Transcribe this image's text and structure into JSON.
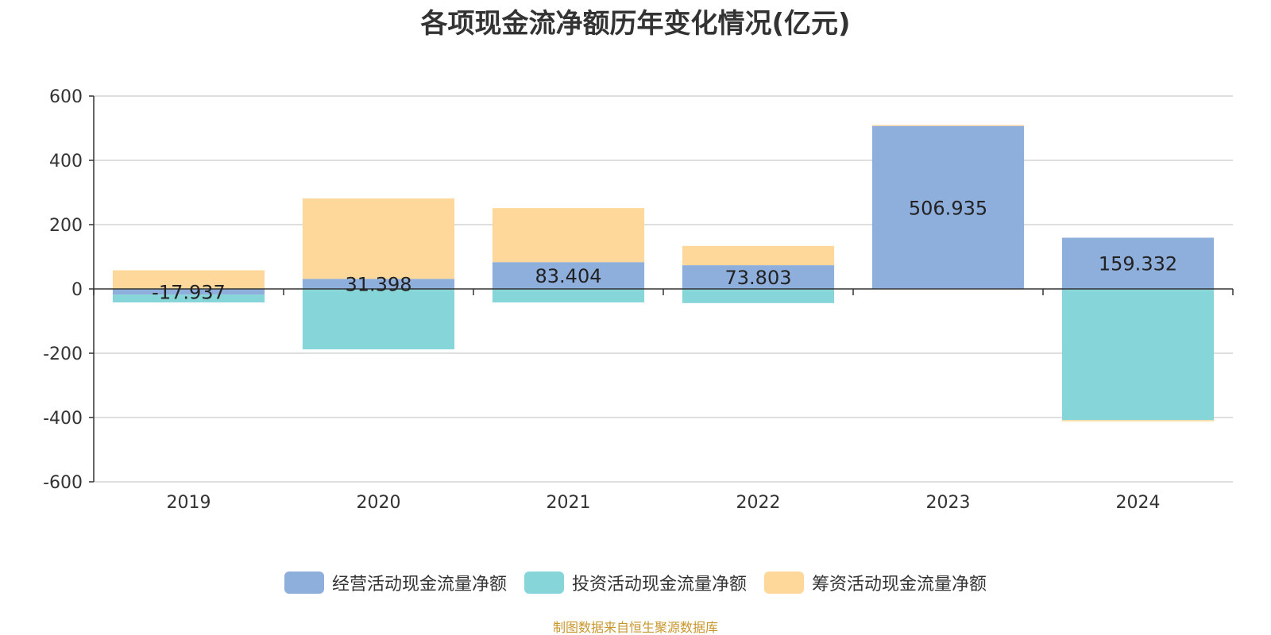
{
  "chart_data": {
    "type": "bar",
    "stacked": true,
    "title": "各项现金流净额历年变化情况(亿元)",
    "categories": [
      "2019",
      "2020",
      "2021",
      "2022",
      "2023",
      "2024"
    ],
    "series": [
      {
        "name": "经营活动现金流量净额",
        "color": "#8eaedc",
        "values": [
          -17.937,
          31.398,
          83.404,
          73.803,
          506.935,
          159.332
        ],
        "labels": [
          "-17.937",
          "31.398",
          "83.404",
          "73.803",
          "506.935",
          "159.332"
        ]
      },
      {
        "name": "投资活动现金流量净额",
        "color": "#86d5d8",
        "values": [
          -24,
          -188,
          -42,
          -44,
          0,
          -408
        ]
      },
      {
        "name": "筹资活动现金流量净额",
        "color": "#fdd89a",
        "values": [
          58,
          250,
          168,
          60,
          3,
          -4
        ]
      }
    ],
    "ylim": [
      -600,
      600
    ],
    "yticks": [
      600,
      400,
      200,
      0,
      -200,
      -400,
      -600
    ],
    "grid": true,
    "legend_position": "bottom"
  },
  "footer": "制图数据来自恒生聚源数据库"
}
